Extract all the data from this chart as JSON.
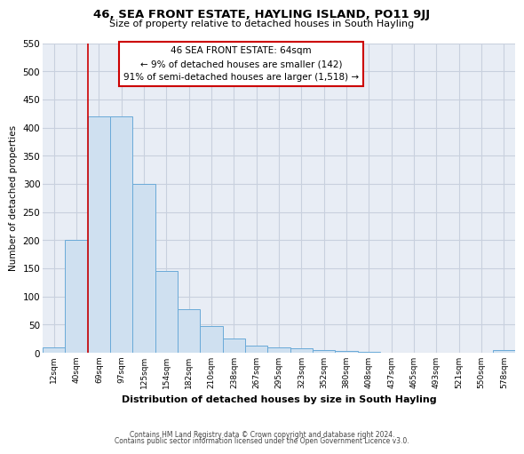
{
  "title": "46, SEA FRONT ESTATE, HAYLING ISLAND, PO11 9JJ",
  "subtitle": "Size of property relative to detached houses in South Hayling",
  "xlabel": "Distribution of detached houses by size in South Hayling",
  "ylabel": "Number of detached properties",
  "bar_labels": [
    "12sqm",
    "40sqm",
    "69sqm",
    "97sqm",
    "125sqm",
    "154sqm",
    "182sqm",
    "210sqm",
    "238sqm",
    "267sqm",
    "295sqm",
    "323sqm",
    "352sqm",
    "380sqm",
    "408sqm",
    "437sqm",
    "465sqm",
    "493sqm",
    "521sqm",
    "550sqm",
    "578sqm"
  ],
  "bar_values": [
    10,
    200,
    420,
    420,
    300,
    145,
    78,
    48,
    25,
    13,
    10,
    8,
    5,
    3,
    1,
    0,
    0,
    0,
    0,
    0,
    5
  ],
  "bar_color": "#cfe0f0",
  "bar_edge_color": "#6aaad8",
  "red_line_index": 2,
  "ylim": [
    0,
    550
  ],
  "yticks": [
    0,
    50,
    100,
    150,
    200,
    250,
    300,
    350,
    400,
    450,
    500,
    550
  ],
  "annotation_lines": [
    "46 SEA FRONT ESTATE: 64sqm",
    "← 9% of detached houses are smaller (142)",
    "91% of semi-detached houses are larger (1,518) →"
  ],
  "annotation_box_color": "#ffffff",
  "annotation_box_edge_color": "#cc0000",
  "grid_color": "#c8d0de",
  "background_color": "#e8edf5",
  "fig_background": "#ffffff",
  "footer_line1": "Contains HM Land Registry data © Crown copyright and database right 2024.",
  "footer_line2": "Contains public sector information licensed under the Open Government Licence v3.0."
}
